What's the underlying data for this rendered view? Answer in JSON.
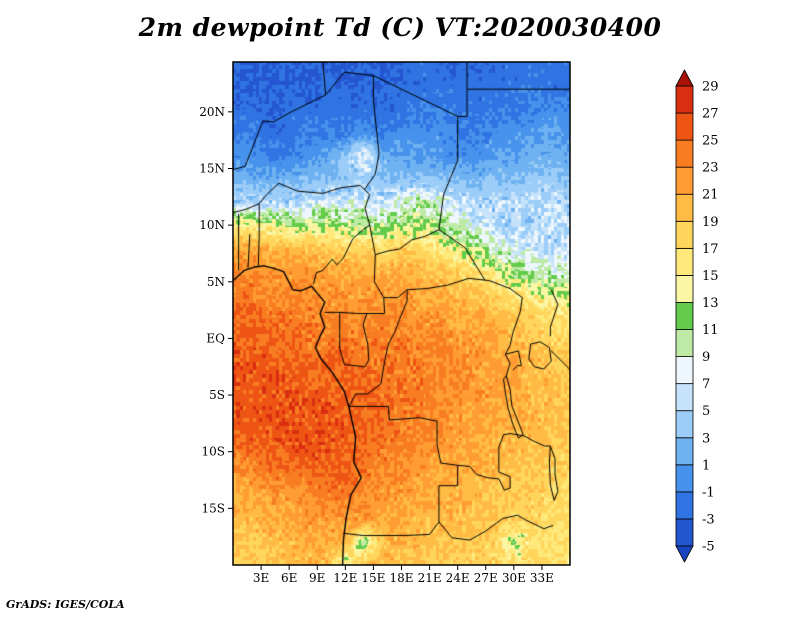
{
  "title": "2m dewpoint Td (C) VT:2020030400",
  "footer": "GrADS: IGES/COLA",
  "chart_data": {
    "type": "heatmap",
    "title": "2m dewpoint Td (C) VT:2020030400",
    "units": "C",
    "valid_time": "2020030400",
    "x_axis": {
      "ticks": [
        3,
        6,
        9,
        12,
        15,
        18,
        21,
        24,
        27,
        30,
        33
      ],
      "labels": [
        "3E",
        "6E",
        "9E",
        "12E",
        "15E",
        "18E",
        "21E",
        "24E",
        "27E",
        "30E",
        "33E"
      ],
      "range": [
        0,
        36
      ]
    },
    "y_axis": {
      "ticks": [
        20,
        15,
        10,
        5,
        0,
        -5,
        -10,
        -15
      ],
      "labels": [
        "20N",
        "15N",
        "10N",
        "5N",
        "EQ",
        "5S",
        "10S",
        "15S"
      ],
      "range": [
        -20,
        24.4
      ]
    },
    "colorbar": {
      "levels": [
        -5,
        -3,
        -1,
        1,
        3,
        5,
        7,
        9,
        11,
        13,
        15,
        17,
        19,
        21,
        23,
        25,
        27,
        29
      ],
      "labels": [
        "29",
        "27",
        "25",
        "23",
        "21",
        "19",
        "17",
        "15",
        "13",
        "11",
        "9",
        "7",
        "5",
        "3",
        "1",
        "-1",
        "-3",
        "-5"
      ],
      "colors": [
        "#1a45c0",
        "#2456d2",
        "#2f74e2",
        "#4792ec",
        "#6fb2f2",
        "#9ccdf8",
        "#c6e3fb",
        "#eef7fd",
        "#bfeaa6",
        "#62cb49",
        "#fbf6a3",
        "#ffe97a",
        "#ffd55c",
        "#ffbb44",
        "#ff9d33",
        "#f87d22",
        "#ee5514",
        "#d92e10",
        "#a81208"
      ]
    },
    "grid": {
      "lon_start": 0,
      "lon_step": 2,
      "lat_start": 24,
      "lat_step": -2,
      "values": [
        [
          -3,
          -3,
          -3,
          -3,
          -3,
          -3,
          -4,
          -3,
          -3,
          -3,
          -2,
          -2,
          -3,
          -3,
          -2,
          -2,
          -2,
          -2,
          -2
        ],
        [
          -3,
          -3,
          -3,
          -3,
          -3,
          -2,
          -3,
          -3,
          -3,
          -2,
          -2,
          -2,
          -2,
          -2,
          -2,
          -2,
          -1,
          -2,
          -2
        ],
        [
          -2,
          -2,
          -3,
          -2,
          -2,
          -2,
          -2,
          -2,
          -2,
          -2,
          -1,
          -1,
          -2,
          -2,
          -2,
          -1,
          -1,
          0,
          -1
        ],
        [
          -2,
          -1,
          -2,
          -2,
          -1,
          -1,
          -1,
          0,
          -1,
          0,
          0,
          0,
          -1,
          -1,
          0,
          0,
          1,
          1,
          0
        ],
        [
          0,
          0,
          -1,
          -1,
          0,
          1,
          4,
          8,
          2,
          1,
          1,
          0,
          0,
          0,
          1,
          1,
          2,
          2,
          1
        ],
        [
          2,
          2,
          2,
          2,
          3,
          3,
          4,
          4,
          3,
          3,
          3,
          3,
          3,
          2,
          3,
          3,
          4,
          4,
          3
        ],
        [
          5,
          6,
          5,
          5,
          6,
          7,
          7,
          7,
          6,
          8,
          11,
          8,
          6,
          5,
          5,
          5,
          5,
          6,
          5
        ],
        [
          16,
          15,
          14,
          13,
          13,
          13,
          12,
          12,
          11,
          12,
          13,
          11,
          9,
          7,
          6,
          5,
          5,
          5,
          6
        ],
        [
          21,
          21,
          20,
          20,
          19,
          19,
          18,
          18,
          17,
          18,
          17,
          16,
          14,
          12,
          9,
          7,
          6,
          5,
          6
        ],
        [
          23,
          23,
          22,
          22,
          22,
          21,
          21,
          21,
          20,
          21,
          20,
          19,
          18,
          16,
          14,
          12,
          10,
          9,
          9
        ],
        [
          24,
          24,
          23,
          23,
          23,
          22,
          22,
          22,
          22,
          22,
          21,
          21,
          20,
          19,
          18,
          16,
          15,
          14,
          13
        ],
        [
          25,
          25,
          24,
          24,
          24,
          23,
          23,
          23,
          23,
          23,
          22,
          22,
          21,
          21,
          20,
          19,
          18,
          17,
          16
        ],
        [
          26,
          25,
          25,
          25,
          24,
          24,
          24,
          24,
          24,
          24,
          23,
          23,
          22,
          22,
          21,
          20,
          19,
          18,
          18
        ],
        [
          26,
          26,
          26,
          25,
          25,
          25,
          25,
          24,
          24,
          24,
          24,
          23,
          23,
          22,
          21,
          21,
          20,
          19,
          19
        ],
        [
          26,
          26,
          26,
          26,
          26,
          25,
          25,
          25,
          24,
          24,
          24,
          23,
          23,
          22,
          22,
          21,
          20,
          20,
          19
        ],
        [
          26,
          26,
          26,
          26,
          26,
          26,
          25,
          25,
          25,
          24,
          24,
          23,
          22,
          22,
          21,
          21,
          20,
          20,
          19
        ],
        [
          25,
          26,
          26,
          26,
          26,
          26,
          26,
          25,
          25,
          24,
          23,
          23,
          22,
          21,
          21,
          20,
          20,
          19,
          19
        ],
        [
          24,
          25,
          25,
          26,
          26,
          26,
          25,
          25,
          24,
          23,
          23,
          22,
          21,
          21,
          20,
          20,
          19,
          19,
          18
        ],
        [
          22,
          23,
          24,
          24,
          25,
          25,
          25,
          24,
          23,
          23,
          22,
          21,
          21,
          20,
          20,
          19,
          19,
          18,
          18
        ],
        [
          21,
          21,
          22,
          22,
          23,
          24,
          24,
          23,
          22,
          22,
          21,
          21,
          20,
          20,
          19,
          19,
          18,
          18,
          17
        ],
        [
          20,
          20,
          21,
          21,
          22,
          22,
          22,
          22,
          21,
          21,
          20,
          20,
          20,
          19,
          19,
          18,
          18,
          17,
          17
        ],
        [
          19,
          19,
          20,
          20,
          21,
          21,
          21,
          11,
          20,
          20,
          20,
          19,
          19,
          19,
          18,
          12,
          17,
          17,
          17
        ],
        [
          18,
          19,
          19,
          20,
          20,
          20,
          12,
          20,
          20,
          19,
          19,
          19,
          18,
          18,
          18,
          17,
          17,
          17,
          16
        ]
      ]
    }
  }
}
